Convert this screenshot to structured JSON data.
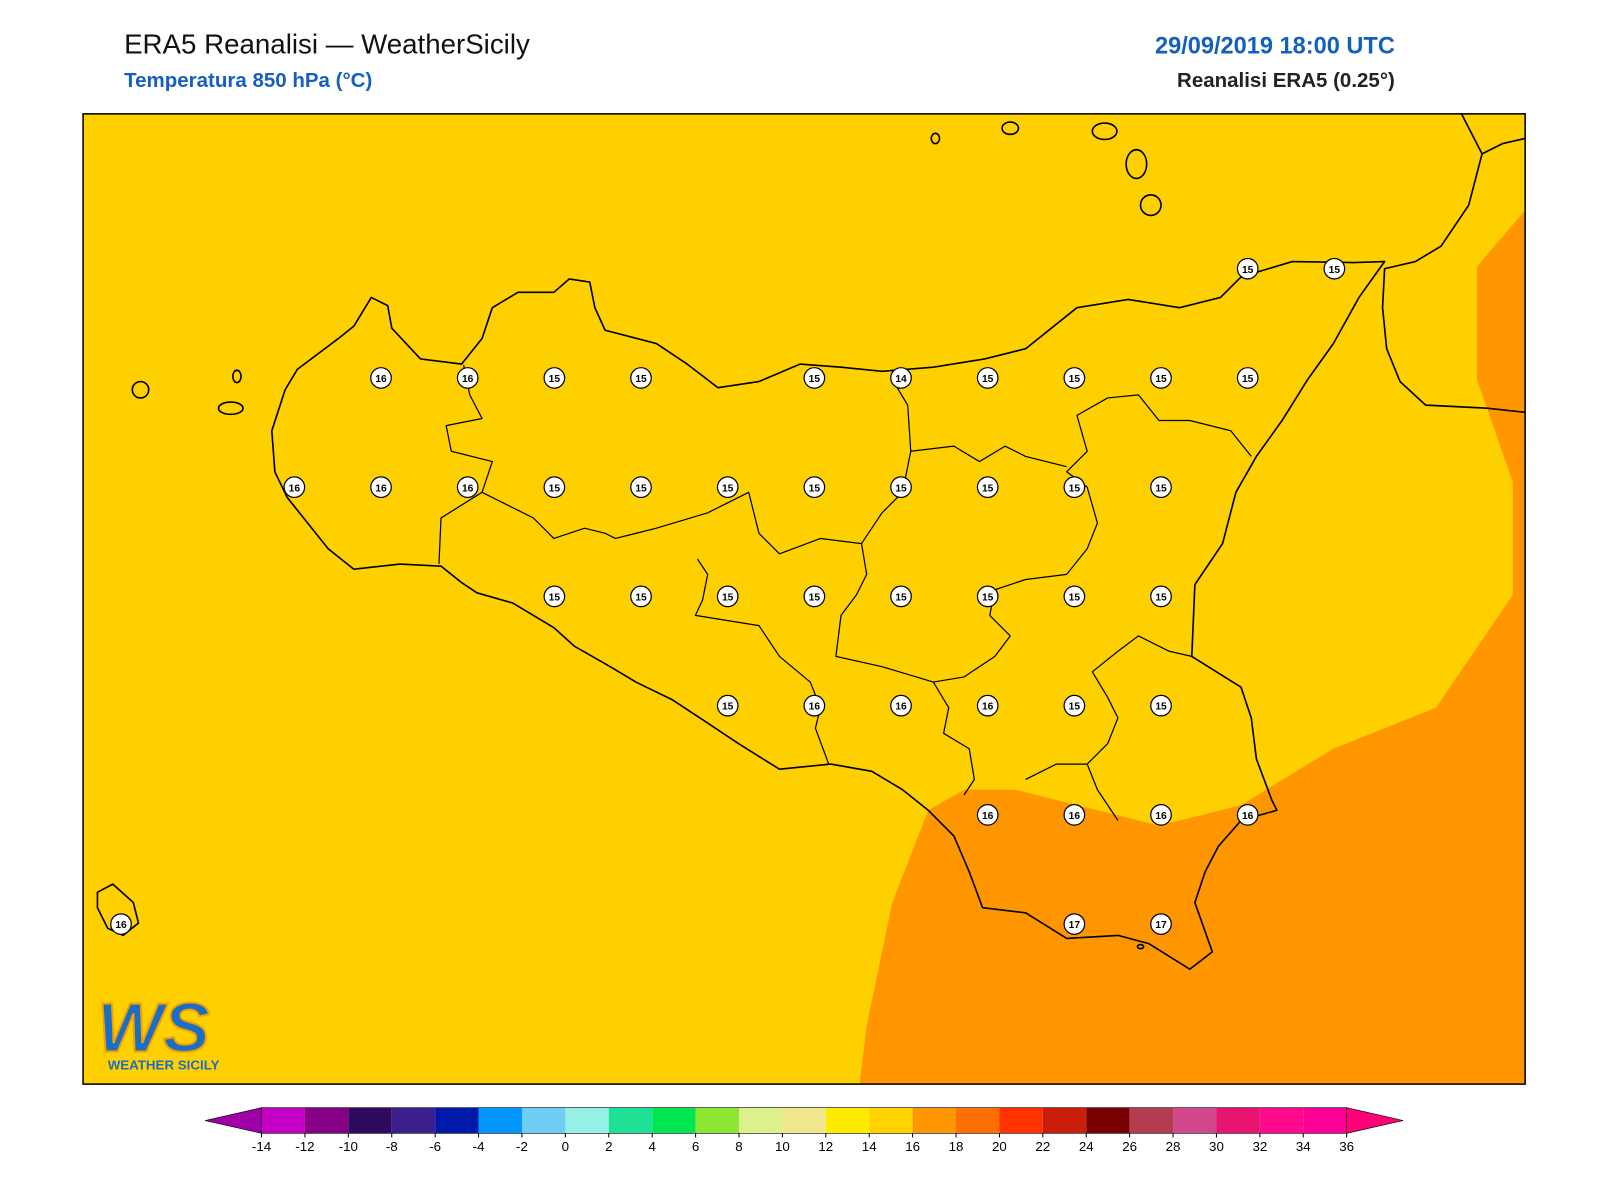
{
  "header": {
    "title": "ERA5 Reanalisi — WeatherSicily",
    "subtitle": "Temperatura 850 hPa (°C)",
    "datetime": "29/09/2019 18:00 UTC",
    "source": "Reanalisi ERA5 (0.25°)"
  },
  "grid": [
    [
      null,
      null,
      null,
      null,
      null,
      null,
      null,
      null,
      null,
      null,
      null,
      null,
      null,
      15,
      15
    ],
    [
      null,
      null,
      null,
      16,
      16,
      15,
      15,
      null,
      15,
      14,
      15,
      15,
      15,
      15,
      null
    ],
    [
      null,
      null,
      16,
      16,
      16,
      15,
      15,
      15,
      15,
      15,
      15,
      15,
      15,
      null,
      null
    ],
    [
      null,
      null,
      null,
      null,
      null,
      15,
      15,
      15,
      15,
      15,
      15,
      15,
      15,
      null,
      null
    ],
    [
      null,
      null,
      null,
      null,
      null,
      null,
      null,
      15,
      16,
      16,
      16,
      15,
      15,
      null,
      null
    ],
    [
      null,
      null,
      null,
      null,
      null,
      null,
      null,
      null,
      null,
      null,
      16,
      16,
      16,
      16,
      null
    ],
    [
      16,
      null,
      null,
      null,
      null,
      null,
      null,
      null,
      null,
      null,
      null,
      17,
      17,
      null,
      null
    ]
  ],
  "colorbar": {
    "ticks": [
      -14,
      -12,
      -10,
      -8,
      -6,
      -4,
      -2,
      0,
      2,
      4,
      6,
      8,
      10,
      12,
      14,
      16,
      18,
      20,
      22,
      24,
      26,
      28,
      30,
      32,
      34,
      36
    ],
    "under_color": "#a000a8",
    "colors": [
      "#c400c4",
      "#850085",
      "#2e0a5e",
      "#3b1f8c",
      "#0019a8",
      "#0096ff",
      "#6ecdf5",
      "#96f0e6",
      "#1ee196",
      "#00e650",
      "#8ce632",
      "#dcf08c",
      "#f0e68c",
      "#ffeb00",
      "#ffd200",
      "#ff9600",
      "#ff6e00",
      "#ff3200",
      "#c81e0a",
      "#780000",
      "#b43c50",
      "#d2468c",
      "#e6146e",
      "#ff0a8c",
      "#ff0096"
    ],
    "over_color": "#ff0078"
  },
  "logo": {
    "mark": "WS",
    "name": "WEATHER SICILY"
  }
}
